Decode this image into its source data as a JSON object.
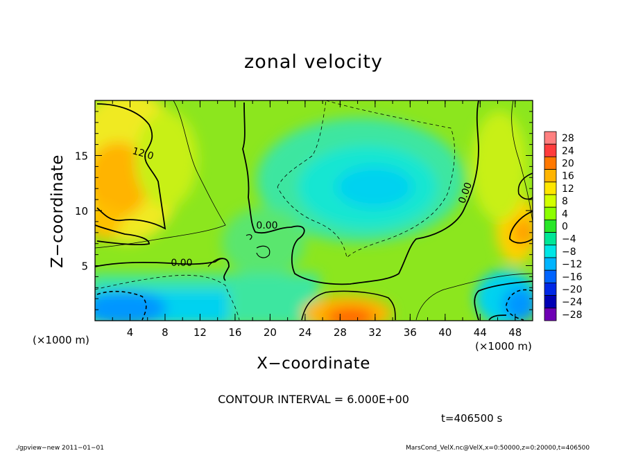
{
  "chart_data": {
    "type": "heatmap",
    "title": "zonal velocity",
    "xlabel": "X−coordinate",
    "ylabel": "Z−coordinate",
    "x_unit": "(×1000 m)",
    "y_unit": "(×1000 m)",
    "xlim": [
      0,
      50
    ],
    "ylim": [
      0,
      20
    ],
    "x_ticks": [
      "4",
      "8",
      "12",
      "16",
      "20",
      "24",
      "28",
      "32",
      "36",
      "40",
      "44",
      "48"
    ],
    "y_ticks": [
      "5",
      "10",
      "15"
    ],
    "colorbar_levels": [
      "28",
      "24",
      "20",
      "16",
      "12",
      "8",
      "4",
      "0",
      "−4",
      "−8",
      "−12",
      "−16",
      "−20",
      "−24",
      "−28"
    ],
    "colorbar_colors": [
      "#ff8080",
      "#ff3c3c",
      "#ff7800",
      "#ffb400",
      "#ffe600",
      "#d2ff00",
      "#8cff00",
      "#28e628",
      "#00e696",
      "#00e6e6",
      "#00b4ff",
      "#0064ff",
      "#0028e6",
      "#0000b4",
      "#6e00b4"
    ],
    "contour_labels": [
      "12.0",
      "0.00",
      "0.00",
      "0.00"
    ],
    "contour_interval": "CONTOUR INTERVAL = 6.000E+00",
    "time_label": "t=406500 s",
    "grid": false
  },
  "footer": {
    "left": "./gpview−new   2011−01−01",
    "right": "MarsCond_VelX.nc@VelX,x=0:50000,z=0:20000,t=406500"
  }
}
